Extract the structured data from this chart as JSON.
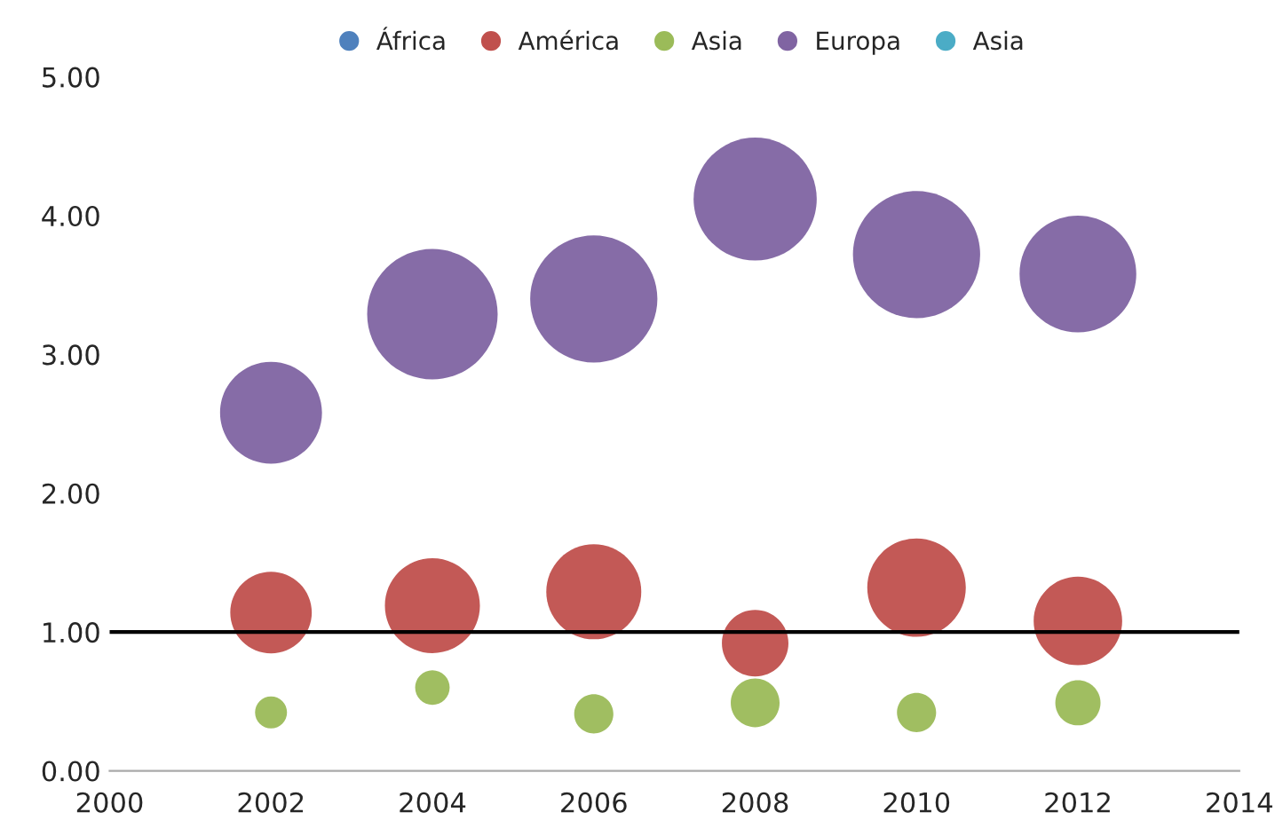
{
  "chart_data": {
    "type": "bubble",
    "x": [
      2002,
      2004,
      2006,
      2008,
      2010,
      2012
    ],
    "series": [
      {
        "name": "África",
        "color": "#4f81bd",
        "values": [
          null,
          null,
          null,
          null,
          null,
          null
        ],
        "sizes": [
          null,
          null,
          null,
          null,
          null,
          null
        ]
      },
      {
        "name": "América",
        "color": "#c0504d",
        "values": [
          1.14,
          1.19,
          1.29,
          0.92,
          1.32,
          1.08
        ],
        "sizes": [
          0.39,
          0.53,
          0.53,
          0.26,
          0.57,
          0.46
        ]
      },
      {
        "name": "Asia",
        "color": "#9bbb59",
        "values": [
          0.42,
          0.6,
          0.41,
          0.49,
          0.42,
          0.49
        ],
        "sizes": [
          0.06,
          0.07,
          0.09,
          0.14,
          0.09,
          0.12
        ]
      },
      {
        "name": "Europa",
        "color": "#8064a2",
        "values": [
          2.58,
          3.29,
          3.4,
          4.12,
          3.72,
          3.58
        ],
        "sizes": [
          0.61,
          1,
          0.95,
          0.89,
          0.95,
          0.8
        ]
      },
      {
        "name": "Asia",
        "color": "#4bacc6",
        "values": [
          null,
          null,
          null,
          null,
          null,
          null
        ],
        "sizes": [
          null,
          null,
          null,
          null,
          null,
          null
        ]
      }
    ],
    "xlim": [
      2000,
      2014
    ],
    "xticks": [
      2000,
      2002,
      2004,
      2006,
      2008,
      2010,
      2012,
      2014
    ],
    "ylim": [
      0,
      5
    ],
    "yticks": [
      {
        "value": 0,
        "label": "0.00"
      },
      {
        "value": 1,
        "label": "1.00"
      },
      {
        "value": 2,
        "label": "2.00"
      },
      {
        "value": 3,
        "label": "3.00"
      },
      {
        "value": 4,
        "label": "4.00"
      },
      {
        "value": 5,
        "label": "5.00"
      }
    ],
    "ref_lines": [
      {
        "axis": "y",
        "value": 1,
        "color": "#000000"
      }
    ],
    "grid": false,
    "legend": "top"
  }
}
